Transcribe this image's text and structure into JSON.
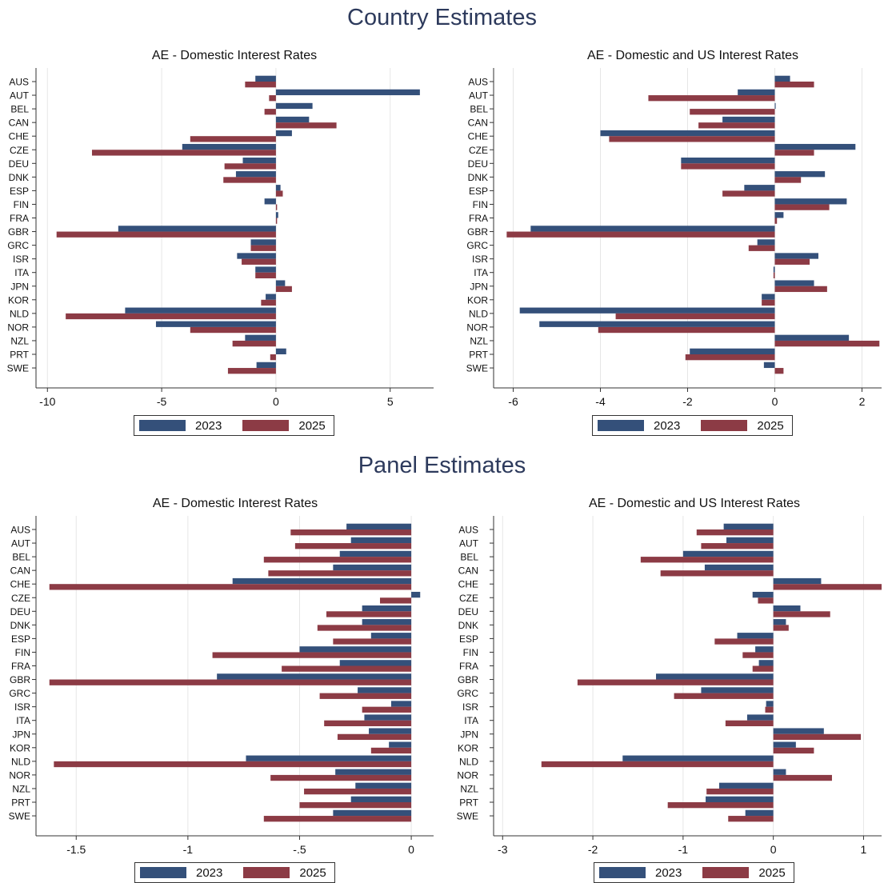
{
  "titles": {
    "country": "Country Estimates",
    "panel": "Panel Estimates"
  },
  "colors": {
    "series2023": "#34507a",
    "series2025": "#8c3b45"
  },
  "chart_data": [
    {
      "id": "country_domestic",
      "type": "bar",
      "orientation": "horizontal",
      "title": "AE - Domestic Interest Rates",
      "categories": [
        "AUS",
        "AUT",
        "BEL",
        "CAN",
        "CHE",
        "CZE",
        "DEU",
        "DNK",
        "ESP",
        "FIN",
        "FRA",
        "GBR",
        "GRC",
        "ISR",
        "ITA",
        "JPN",
        "KOR",
        "NLD",
        "NOR",
        "NZL",
        "PRT",
        "SWE"
      ],
      "series": [
        {
          "name": "2023",
          "values": [
            -0.9,
            6.3,
            1.6,
            1.45,
            0.7,
            -4.1,
            -1.45,
            -1.75,
            0.2,
            -0.5,
            0.1,
            -6.9,
            -1.1,
            -1.7,
            -0.9,
            0.4,
            -0.45,
            -6.6,
            -5.25,
            -1.35,
            0.45,
            -0.85
          ]
        },
        {
          "name": "2025",
          "values": [
            -1.35,
            -0.3,
            -0.5,
            2.65,
            -3.75,
            -8.05,
            -2.25,
            -2.3,
            0.3,
            0.05,
            0.05,
            -9.6,
            -1.1,
            -1.5,
            -0.9,
            0.7,
            -0.65,
            -9.2,
            -3.75,
            -1.9,
            -0.25,
            -2.1
          ]
        }
      ],
      "xlim": [
        -10.5,
        6.9
      ],
      "xticks": [
        -10,
        -5,
        0,
        5
      ],
      "xtick_labels": [
        "-10",
        "-5",
        "0",
        "5"
      ],
      "legend": [
        "2023",
        "2025"
      ],
      "legend_position": "bottom"
    },
    {
      "id": "country_domestic_us",
      "type": "bar",
      "orientation": "horizontal",
      "title": "AE - Domestic and US Interest Rates",
      "categories": [
        "AUS",
        "AUT",
        "BEL",
        "CAN",
        "CHE",
        "CZE",
        "DEU",
        "DNK",
        "ESP",
        "FIN",
        "FRA",
        "GBR",
        "GRC",
        "ISR",
        "ITA",
        "JPN",
        "KOR",
        "NLD",
        "NOR",
        "NZL",
        "PRT",
        "SWE"
      ],
      "series": [
        {
          "name": "2023",
          "values": [
            0.35,
            -0.85,
            0.02,
            -1.2,
            -4.0,
            1.85,
            -2.15,
            1.15,
            -0.7,
            1.65,
            0.2,
            -5.6,
            -0.4,
            1.0,
            -0.03,
            0.9,
            -0.3,
            -5.85,
            -5.4,
            1.7,
            -1.95,
            -0.25
          ]
        },
        {
          "name": "2025",
          "values": [
            0.9,
            -2.9,
            -1.95,
            -1.75,
            -3.8,
            0.9,
            -2.15,
            0.6,
            -1.2,
            1.25,
            0.05,
            -6.15,
            -0.6,
            0.8,
            -0.03,
            1.2,
            -0.3,
            -3.65,
            -4.05,
            2.4,
            -2.05,
            0.2
          ]
        }
      ],
      "xlim": [
        -6.45,
        2.45
      ],
      "xticks": [
        -6,
        -4,
        -2,
        0,
        2
      ],
      "xtick_labels": [
        "-6",
        "-4",
        "-2",
        "0",
        "2"
      ],
      "legend": [
        "2023",
        "2025"
      ],
      "legend_position": "bottom"
    },
    {
      "id": "panel_domestic",
      "type": "bar",
      "orientation": "horizontal",
      "title": "AE - Domestic Interest Rates",
      "categories": [
        "AUS",
        "AUT",
        "BEL",
        "CAN",
        "CHE",
        "CZE",
        "DEU",
        "DNK",
        "ESP",
        "FIN",
        "FRA",
        "GBR",
        "GRC",
        "ISR",
        "ITA",
        "JPN",
        "KOR",
        "NLD",
        "NOR",
        "NZL",
        "PRT",
        "SWE"
      ],
      "series": [
        {
          "name": "2023",
          "values": [
            -0.29,
            -0.27,
            -0.32,
            -0.35,
            -0.8,
            0.04,
            -0.22,
            -0.22,
            -0.18,
            -0.5,
            -0.32,
            -0.87,
            -0.24,
            -0.09,
            -0.21,
            -0.19,
            -0.1,
            -0.74,
            -0.34,
            -0.25,
            -0.27,
            -0.35
          ]
        },
        {
          "name": "2025",
          "values": [
            -0.54,
            -0.52,
            -0.66,
            -0.64,
            -1.62,
            -0.14,
            -0.38,
            -0.42,
            -0.35,
            -0.89,
            -0.58,
            -1.62,
            -0.41,
            -0.22,
            -0.39,
            -0.33,
            -0.18,
            -1.6,
            -0.63,
            -0.48,
            -0.5,
            -0.66
          ]
        }
      ],
      "xlim": [
        -1.68,
        0.1
      ],
      "xticks": [
        -1.5,
        -1,
        -0.5,
        0
      ],
      "xtick_labels": [
        "-1.5",
        "-1",
        "-.5",
        "0"
      ],
      "legend": [
        "2023",
        "2025"
      ],
      "legend_position": "bottom"
    },
    {
      "id": "panel_domestic_us",
      "type": "bar",
      "orientation": "horizontal",
      "title": "AE - Domestic and US Interest Rates",
      "categories": [
        "AUS",
        "AUT",
        "BEL",
        "CAN",
        "CHE",
        "CZE",
        "DEU",
        "DNK",
        "ESP",
        "FIN",
        "FRA",
        "GBR",
        "GRC",
        "ISR",
        "ITA",
        "JPN",
        "KOR",
        "NLD",
        "NOR",
        "NZL",
        "PRT",
        "SWE"
      ],
      "series": [
        {
          "name": "2023",
          "values": [
            -0.55,
            -0.52,
            -1.0,
            -0.76,
            0.53,
            -0.23,
            0.3,
            0.14,
            -0.4,
            -0.2,
            -0.16,
            -1.3,
            -0.8,
            -0.08,
            -0.29,
            0.56,
            0.25,
            -1.67,
            0.14,
            -0.6,
            -0.75,
            -0.31
          ]
        },
        {
          "name": "2025",
          "values": [
            -0.85,
            -0.8,
            -1.47,
            -1.25,
            1.2,
            -0.17,
            0.63,
            0.17,
            -0.65,
            -0.34,
            -0.23,
            -2.17,
            -1.1,
            -0.09,
            -0.53,
            0.97,
            0.45,
            -2.57,
            0.65,
            -0.74,
            -1.17,
            -0.5
          ]
        }
      ],
      "xlim": [
        -3.1,
        1.2
      ],
      "xticks": [
        -3,
        -2,
        -1,
        0,
        1
      ],
      "xtick_labels": [
        "-3",
        "-2",
        "-1",
        "0",
        "1"
      ],
      "legend": [
        "2023",
        "2025"
      ],
      "legend_position": "bottom"
    }
  ]
}
